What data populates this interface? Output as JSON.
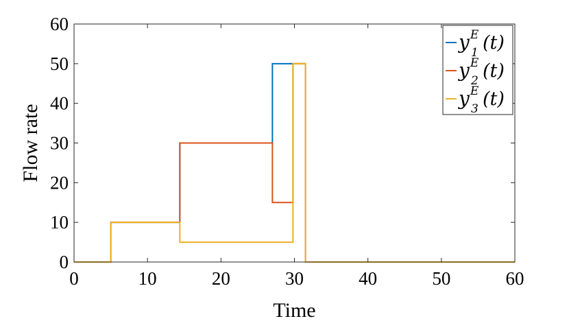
{
  "chart_data": {
    "type": "line",
    "title": "",
    "xlabel": "Time",
    "ylabel": "Flow rate",
    "xlim": [
      0,
      60
    ],
    "ylim": [
      0,
      60
    ],
    "xticks": [
      0,
      10,
      20,
      30,
      40,
      50,
      60
    ],
    "yticks": [
      0,
      10,
      20,
      30,
      40,
      50,
      60
    ],
    "grid": false,
    "legend_position": "top-right",
    "series": [
      {
        "name": "y_1^E(t)",
        "legend": {
          "base": "y",
          "sup": "E",
          "sub": "1",
          "tail": "(t)"
        },
        "color": "#0072BD",
        "x": [
          0,
          5,
          5,
          14.4,
          14.4,
          27,
          27,
          29.8,
          29.8,
          31.5,
          31.5,
          60
        ],
        "y": [
          0,
          0,
          10,
          10,
          30,
          30,
          50,
          50,
          50,
          50,
          0,
          0
        ]
      },
      {
        "name": "y_2^E(t)",
        "legend": {
          "base": "y",
          "sup": "E",
          "sub": "2",
          "tail": "(t)"
        },
        "color": "#D95319",
        "x": [
          0,
          5,
          5,
          14.4,
          14.4,
          27,
          27,
          29.8,
          29.8,
          31.5,
          31.5,
          60
        ],
        "y": [
          0,
          0,
          10,
          10,
          30,
          30,
          15,
          15,
          50,
          50,
          0,
          0
        ]
      },
      {
        "name": "y_3^E(t)",
        "legend": {
          "base": "y",
          "sup": "E",
          "sub": "3",
          "tail": "(t)"
        },
        "color": "#EDB120",
        "x": [
          0,
          5,
          5,
          14.4,
          14.4,
          29.8,
          29.8,
          31.5,
          31.5,
          60
        ],
        "y": [
          0,
          0,
          10,
          10,
          5,
          5,
          50,
          50,
          0,
          0
        ]
      }
    ]
  }
}
